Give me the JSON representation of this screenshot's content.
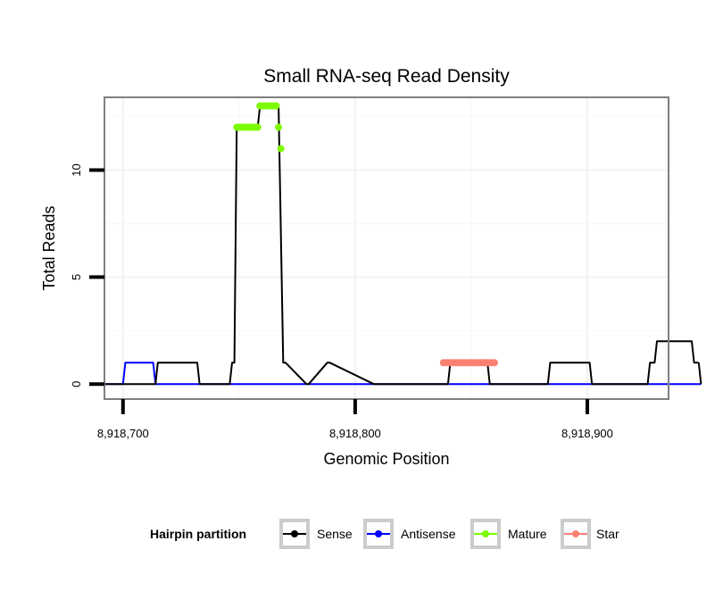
{
  "chart_data": {
    "type": "line",
    "title": "Small RNA-seq Read Density",
    "xlabel": "Genomic Position",
    "ylabel": "Total Reads",
    "xlim": [
      8918692,
      8918935
    ],
    "ylim": [
      -0.7,
      13.4
    ],
    "x_ticks": [
      8918700,
      8918800,
      8918900
    ],
    "x_tick_labels": [
      "8,918,700",
      "8,918,800",
      "8,918,900"
    ],
    "y_ticks": [
      0,
      5,
      10
    ],
    "y_tick_labels": [
      "0",
      "5",
      "10"
    ],
    "grid": true,
    "legend": {
      "title": "Hairpin partition",
      "position": "bottom",
      "entries": [
        {
          "name": "Sense",
          "color": "#000000"
        },
        {
          "name": "Antisense",
          "color": "#0000ff"
        },
        {
          "name": "Mature",
          "color": "#7cfc00"
        },
        {
          "name": "Star",
          "color": "#fa8072"
        }
      ]
    },
    "series": [
      {
        "name": "Sense",
        "color": "#000000",
        "style": "line",
        "x": [
          8918691,
          8918705,
          8918714,
          8918715,
          8918732,
          8918733,
          8918746,
          8918747,
          8918748,
          8918749,
          8918758,
          8918759,
          8918767,
          8918769,
          8918770,
          8918779,
          8918780,
          8918788,
          8918789,
          8918808,
          8918809,
          8918840,
          8918841,
          8918857,
          8918858,
          8918883,
          8918884,
          8918901,
          8918902,
          8918926,
          8918927,
          8918929,
          8918930,
          8918945,
          8918946,
          8918948
        ],
        "y": [
          0,
          0,
          0,
          1,
          1,
          0,
          0,
          1,
          1,
          12,
          12,
          13,
          13,
          1,
          1,
          0,
          0,
          1,
          1,
          0,
          0,
          0,
          1,
          1,
          0,
          0,
          1,
          1,
          0,
          0,
          1,
          1,
          2,
          2,
          1,
          1
        ]
      },
      {
        "name": "Sense (tail)",
        "color": "#000000",
        "style": "line",
        "x": [
          8918948,
          8918949
        ],
        "y": [
          1,
          0
        ]
      },
      {
        "name": "Antisense",
        "color": "#0000ff",
        "style": "line",
        "x": [
          8918691,
          8918700,
          8918701,
          8918713,
          8918714,
          8918949
        ],
        "y": [
          0,
          0,
          1,
          1,
          0,
          0
        ]
      },
      {
        "name": "Mature",
        "color": "#7cfc00",
        "style": "points",
        "x": [
          8918749,
          8918750,
          8918751,
          8918752,
          8918753,
          8918754,
          8918755,
          8918756,
          8918757,
          8918758,
          8918759,
          8918760,
          8918761,
          8918762,
          8918763,
          8918764,
          8918765,
          8918766,
          8918767,
          8918768
        ],
        "y": [
          12,
          12,
          12,
          12,
          12,
          12,
          12,
          12,
          12,
          12,
          13,
          13,
          13,
          13,
          13,
          13,
          13,
          13,
          12,
          11
        ]
      },
      {
        "name": "Star",
        "color": "#fa8072",
        "style": "points",
        "x": [
          8918838,
          8918839,
          8918840,
          8918841,
          8918842,
          8918843,
          8918844,
          8918845,
          8918846,
          8918847,
          8918848,
          8918849,
          8918850,
          8918851,
          8918852,
          8918853,
          8918854,
          8918855,
          8918856,
          8918857,
          8918858,
          8918859,
          8918860
        ],
        "y": [
          1,
          1,
          1,
          1,
          1,
          1,
          1,
          1,
          1,
          1,
          1,
          1,
          1,
          1,
          1,
          1,
          1,
          1,
          1,
          1,
          1,
          1,
          1
        ]
      }
    ]
  }
}
